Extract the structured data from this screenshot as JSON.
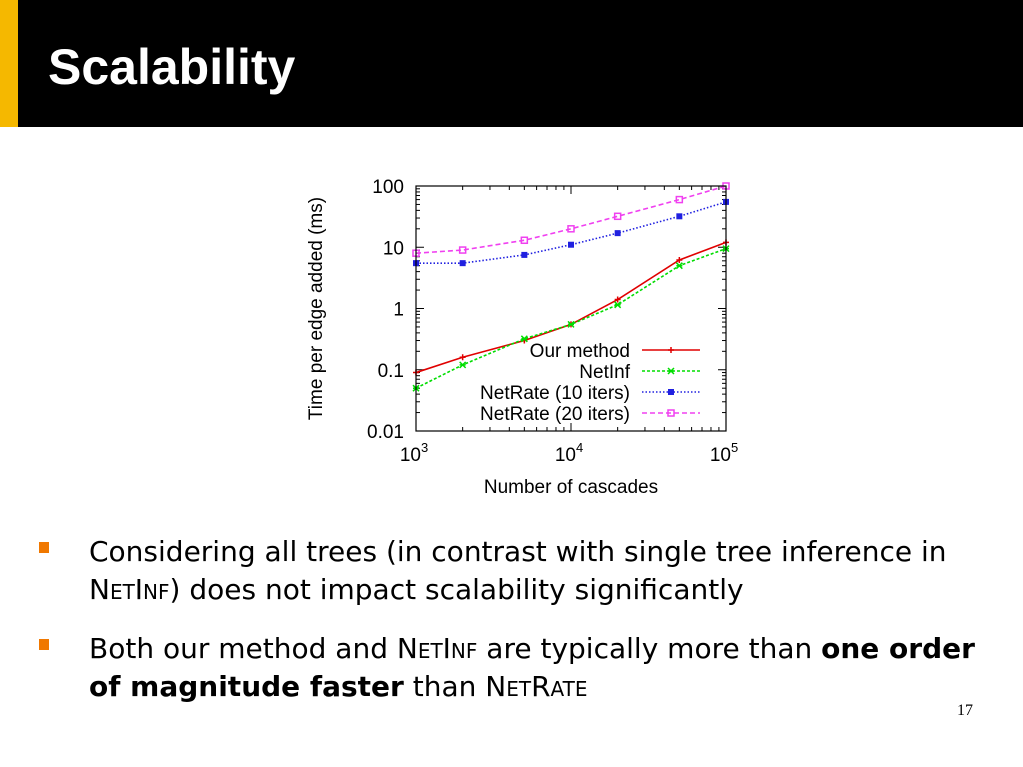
{
  "slide": {
    "title": "Scalability",
    "page_number": "17",
    "accent_color": "#f5b800",
    "bullet_color": "#f07800"
  },
  "bullets": [
    {
      "part1": "Considering all trees (in contrast with single tree inference in ",
      "sc1": "NetInf",
      "part2": ") does not impact scalability significantly"
    },
    {
      "part1": "Both our method and ",
      "sc1": "NetInf",
      "part2": " are typically more than ",
      "bold": "one order of magnitude faster",
      "part3": " than ",
      "sc2": "NetRate"
    }
  ],
  "chart_data": {
    "type": "line",
    "x_scale": "log",
    "y_scale": "log",
    "xlabel": "Number of cascades",
    "ylabel": "Time per edge added (ms)",
    "xlim": [
      1000,
      100000
    ],
    "ylim": [
      0.01,
      100
    ],
    "x_ticks": [
      {
        "value": 1000,
        "base": "10",
        "exp": "3"
      },
      {
        "value": 10000,
        "base": "10",
        "exp": "4"
      },
      {
        "value": 100000,
        "base": "10",
        "exp": "5"
      }
    ],
    "y_ticks": [
      {
        "value": 100,
        "label": "100"
      },
      {
        "value": 10,
        "label": "10"
      },
      {
        "value": 1,
        "label": "1"
      },
      {
        "value": 0.1,
        "label": "0.1"
      },
      {
        "value": 0.01,
        "label": "0.01"
      }
    ],
    "legend_position": "bottom-right",
    "series": [
      {
        "name": "Our method",
        "color": "#e00000",
        "dash": "",
        "marker": "plus",
        "x": [
          1000,
          2000,
          5000,
          10000,
          20000,
          50000,
          100000
        ],
        "y": [
          0.09,
          0.16,
          0.3,
          0.55,
          1.4,
          6.2,
          12
        ]
      },
      {
        "name": "NetInf",
        "color": "#00dd00",
        "dash": "3,2",
        "marker": "cross",
        "x": [
          1000,
          2000,
          5000,
          10000,
          20000,
          50000,
          100000
        ],
        "y": [
          0.05,
          0.12,
          0.32,
          0.55,
          1.15,
          5,
          9.5
        ]
      },
      {
        "name": "NetRate (10 iters)",
        "color": "#2020e0",
        "dash": "1.5,2",
        "marker": "filled-square",
        "x": [
          1000,
          2000,
          5000,
          10000,
          20000,
          50000,
          100000
        ],
        "y": [
          5.5,
          5.5,
          7.5,
          11,
          17,
          32,
          55
        ]
      },
      {
        "name": "NetRate (20 iters)",
        "color": "#f040f0",
        "dash": "5,3",
        "marker": "open-square",
        "x": [
          1000,
          2000,
          5000,
          10000,
          20000,
          50000,
          100000
        ],
        "y": [
          8,
          9,
          13,
          20,
          32,
          60,
          100
        ]
      }
    ]
  }
}
